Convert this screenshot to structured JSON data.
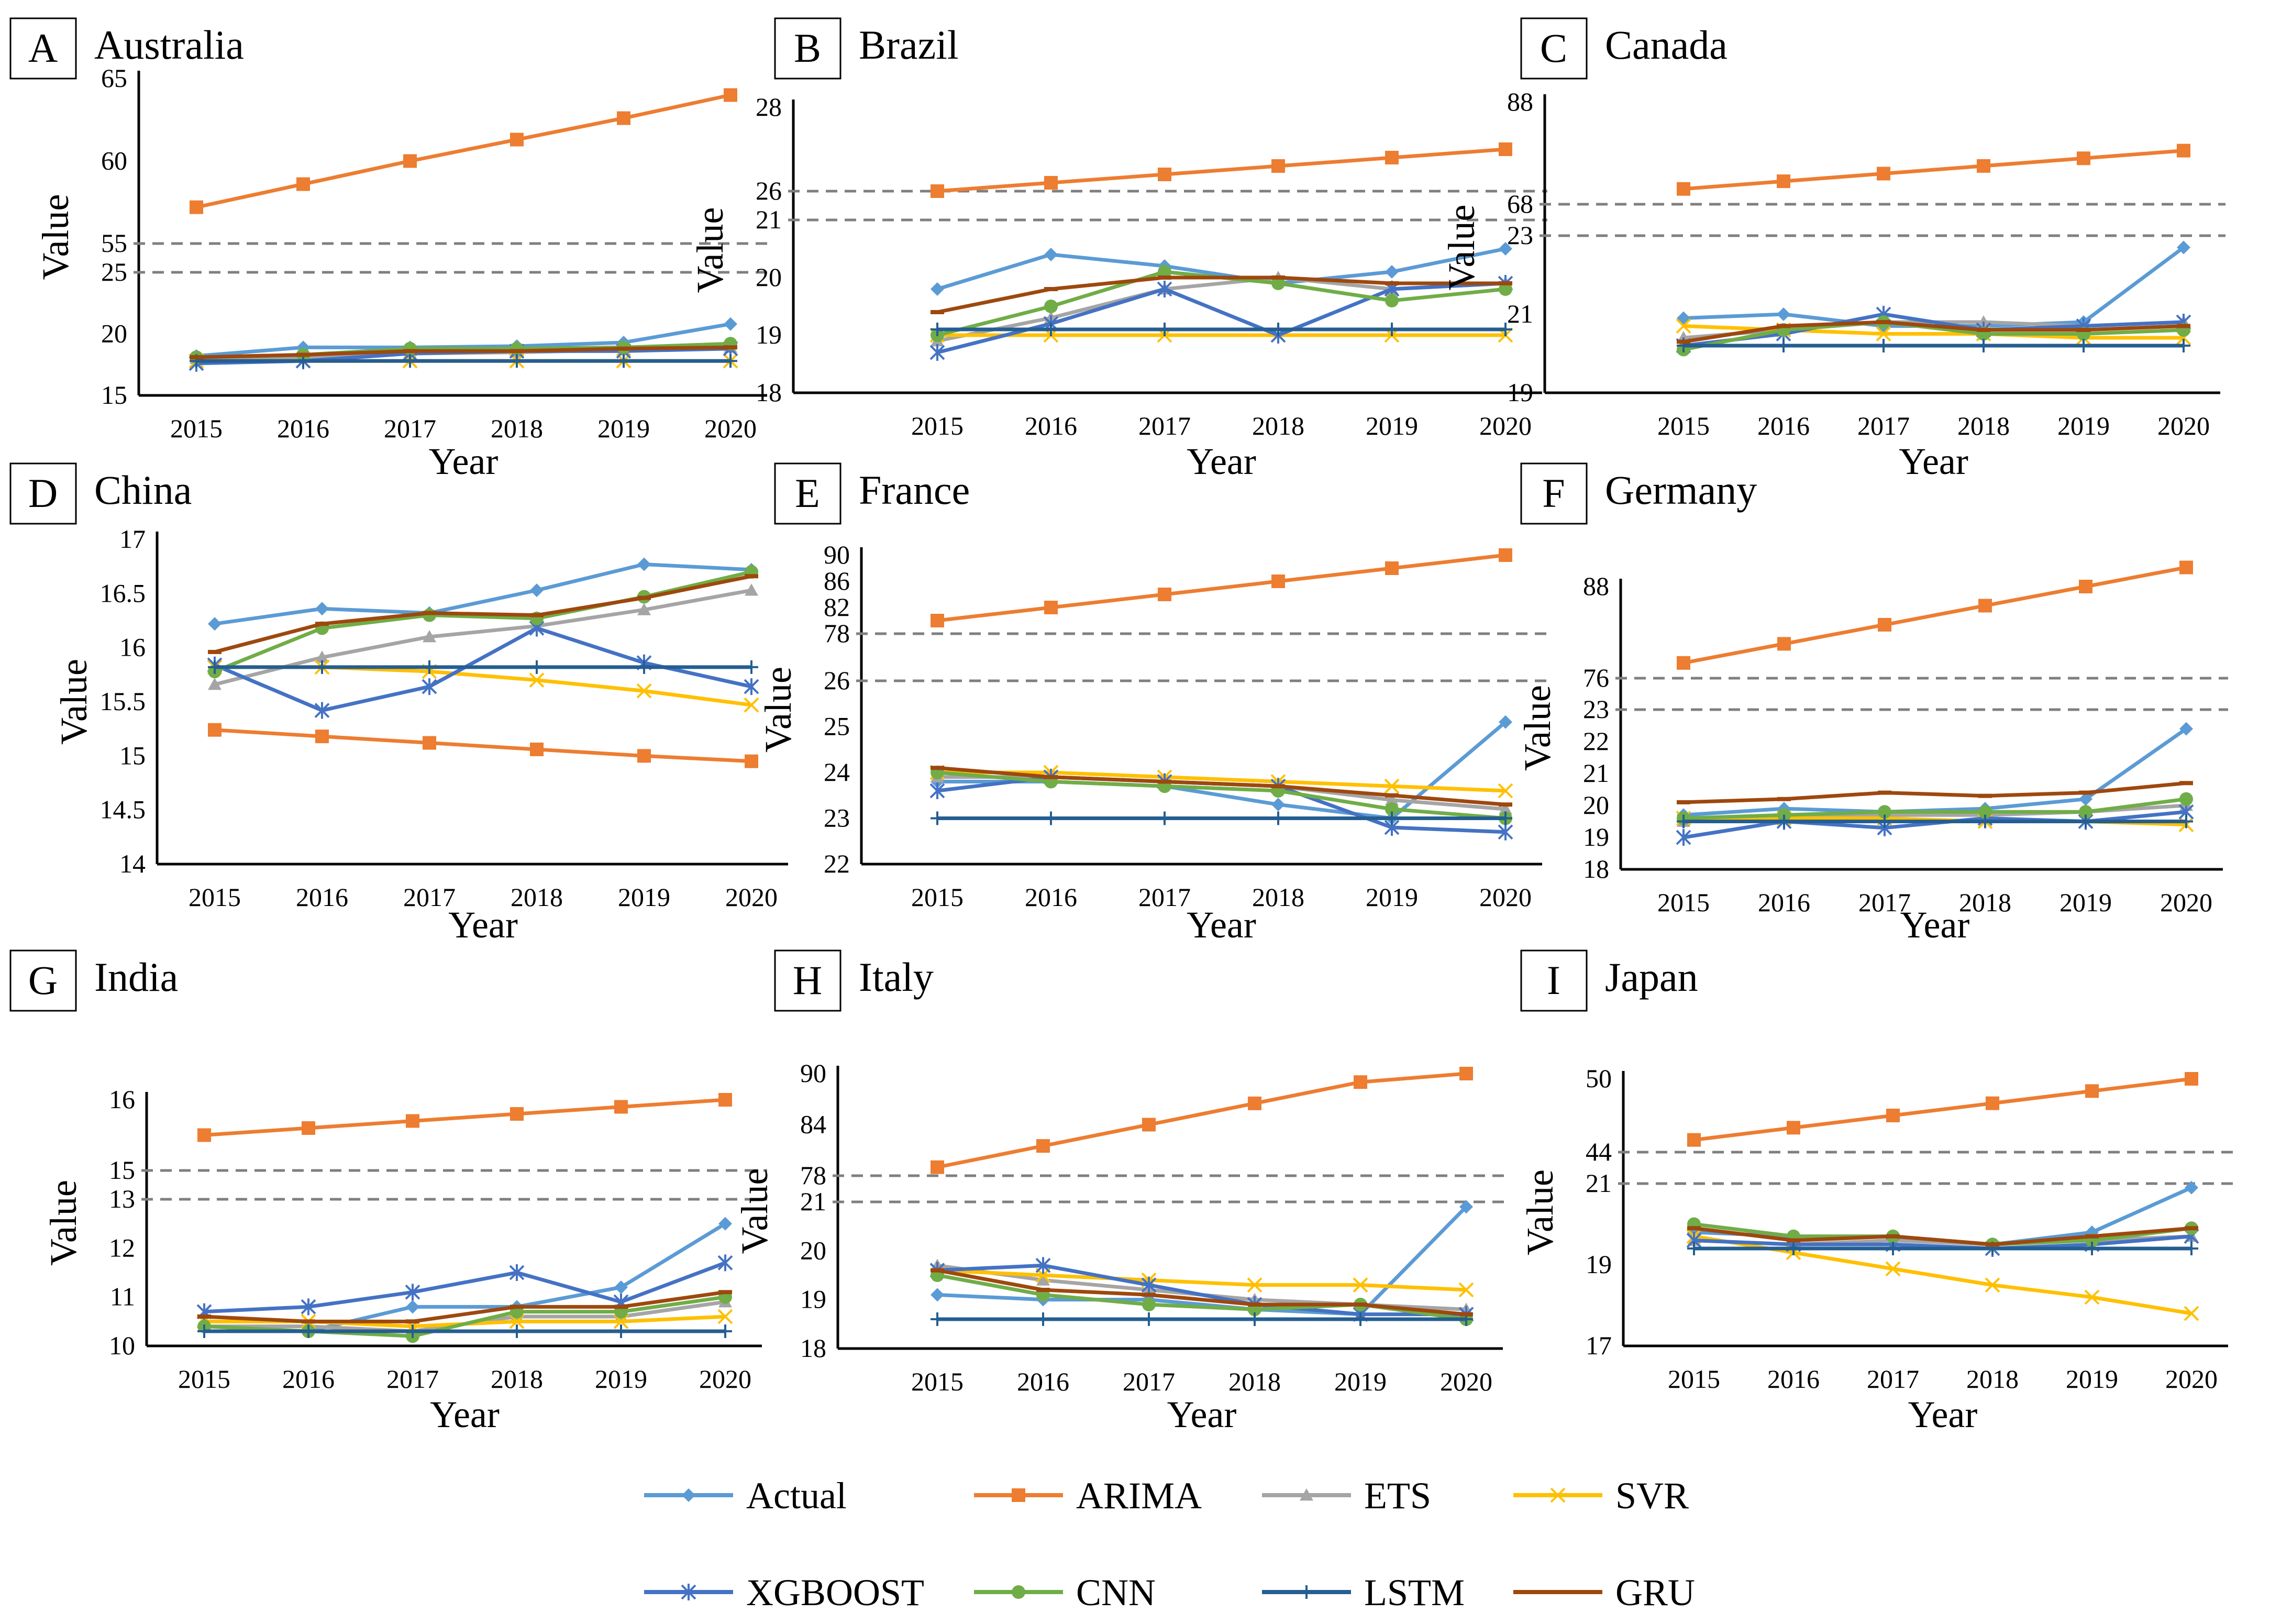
{
  "chart_data": [
    {
      "type": "line",
      "panel": "A",
      "title": "Australia",
      "xlabel": "Year",
      "ylabel": "Value",
      "categories": [
        "2015",
        "2016",
        "2017",
        "2018",
        "2019",
        "2020"
      ],
      "axis_break": true,
      "upper": {
        "ticks": [
          55,
          60,
          65
        ],
        "range": [
          55,
          65
        ]
      },
      "lower": {
        "ticks": [
          15,
          20,
          25
        ],
        "range": [
          15,
          25
        ]
      },
      "series": [
        {
          "name": "Actual",
          "values": [
            18.2,
            18.9,
            18.9,
            19.0,
            19.3,
            20.8
          ]
        },
        {
          "name": "ARIMA",
          "values": [
            57.2,
            58.6,
            60.0,
            61.3,
            62.6,
            64.0
          ]
        },
        {
          "name": "ETS",
          "values": [
            18.0,
            18.1,
            18.4,
            18.5,
            18.7,
            18.9
          ]
        },
        {
          "name": "SVR",
          "values": [
            17.8,
            17.8,
            17.8,
            17.8,
            17.8,
            17.8
          ]
        },
        {
          "name": "XGBOOST",
          "values": [
            17.6,
            17.8,
            18.4,
            18.6,
            18.6,
            18.8
          ]
        },
        {
          "name": "CNN",
          "values": [
            18.1,
            18.3,
            18.8,
            18.8,
            18.9,
            19.2
          ]
        },
        {
          "name": "LSTM",
          "values": [
            17.8,
            17.8,
            17.8,
            17.8,
            17.8,
            17.8
          ]
        },
        {
          "name": "GRU",
          "values": [
            18.1,
            18.3,
            18.6,
            18.6,
            18.8,
            18.9
          ]
        }
      ]
    },
    {
      "type": "line",
      "panel": "B",
      "title": "Brazil",
      "xlabel": "Year",
      "ylabel": "Value",
      "categories": [
        "2015",
        "2016",
        "2017",
        "2018",
        "2019",
        "2020"
      ],
      "axis_break": true,
      "upper": {
        "ticks": [
          26,
          28
        ],
        "range": [
          26,
          28
        ]
      },
      "lower": {
        "ticks": [
          18,
          19,
          20,
          21
        ],
        "range": [
          18,
          21
        ]
      },
      "series": [
        {
          "name": "Actual",
          "values": [
            19.8,
            20.4,
            20.2,
            19.9,
            20.1,
            20.5
          ]
        },
        {
          "name": "ARIMA",
          "values": [
            26.0,
            26.2,
            26.4,
            26.6,
            26.8,
            27.0
          ]
        },
        {
          "name": "ETS",
          "values": [
            18.9,
            19.3,
            19.8,
            20.0,
            19.8,
            19.9
          ]
        },
        {
          "name": "SVR",
          "values": [
            19.0,
            19.0,
            19.0,
            19.0,
            19.0,
            19.0
          ]
        },
        {
          "name": "XGBOOST",
          "values": [
            18.7,
            19.2,
            19.8,
            19.0,
            19.8,
            19.9
          ]
        },
        {
          "name": "CNN",
          "values": [
            19.0,
            19.5,
            20.1,
            19.9,
            19.6,
            19.8
          ]
        },
        {
          "name": "LSTM",
          "values": [
            19.1,
            19.1,
            19.1,
            19.1,
            19.1,
            19.1
          ]
        },
        {
          "name": "GRU",
          "values": [
            19.4,
            19.8,
            20.0,
            20.0,
            19.9,
            19.9
          ]
        }
      ]
    },
    {
      "type": "line",
      "panel": "C",
      "title": "Canada",
      "xlabel": "Year",
      "ylabel": "Value",
      "categories": [
        "2015",
        "2016",
        "2017",
        "2018",
        "2019",
        "2020"
      ],
      "axis_break": true,
      "upper": {
        "ticks": [
          68,
          88
        ],
        "range": [
          68,
          88
        ]
      },
      "lower": {
        "ticks": [
          19,
          21,
          23
        ],
        "range": [
          19,
          23
        ]
      },
      "series": [
        {
          "name": "Actual",
          "values": [
            20.9,
            21.0,
            20.7,
            20.7,
            20.8,
            22.7
          ]
        },
        {
          "name": "ARIMA",
          "values": [
            71.0,
            72.5,
            74.0,
            75.5,
            77.0,
            78.5
          ]
        },
        {
          "name": "ETS",
          "values": [
            20.4,
            20.6,
            20.8,
            20.8,
            20.7,
            20.8
          ]
        },
        {
          "name": "SVR",
          "values": [
            20.7,
            20.6,
            20.5,
            20.5,
            20.4,
            20.4
          ]
        },
        {
          "name": "XGBOOST",
          "values": [
            20.2,
            20.5,
            21.0,
            20.6,
            20.7,
            20.8
          ]
        },
        {
          "name": "CNN",
          "values": [
            20.1,
            20.6,
            20.8,
            20.5,
            20.5,
            20.6
          ]
        },
        {
          "name": "LSTM",
          "values": [
            20.2,
            20.2,
            20.2,
            20.2,
            20.2,
            20.2
          ]
        },
        {
          "name": "GRU",
          "values": [
            20.3,
            20.7,
            20.8,
            20.6,
            20.6,
            20.7
          ]
        }
      ]
    },
    {
      "type": "line",
      "panel": "D",
      "title": "China",
      "xlabel": "Year",
      "ylabel": "Value",
      "categories": [
        "2015",
        "2016",
        "2017",
        "2018",
        "2019",
        "2020"
      ],
      "axis_break": false,
      "lower": {
        "ticks": [
          14,
          14.5,
          15,
          15.5,
          16,
          16.5,
          17
        ],
        "range": [
          14,
          17
        ]
      },
      "series": [
        {
          "name": "Actual",
          "values": [
            16.22,
            16.36,
            16.32,
            16.53,
            16.77,
            16.72
          ]
        },
        {
          "name": "ARIMA",
          "values": [
            15.24,
            15.18,
            15.12,
            15.06,
            15.0,
            14.95
          ]
        },
        {
          "name": "ETS",
          "values": [
            15.66,
            15.91,
            16.1,
            16.2,
            16.35,
            16.53
          ]
        },
        {
          "name": "SVR",
          "values": [
            15.82,
            15.82,
            15.78,
            15.7,
            15.6,
            15.47
          ]
        },
        {
          "name": "XGBOOST",
          "values": [
            15.84,
            15.42,
            15.64,
            16.18,
            15.86,
            15.64
          ]
        },
        {
          "name": "CNN",
          "values": [
            15.78,
            16.18,
            16.3,
            16.27,
            16.47,
            16.7
          ]
        },
        {
          "name": "LSTM",
          "values": [
            15.82,
            15.82,
            15.82,
            15.82,
            15.82,
            15.82
          ]
        },
        {
          "name": "GRU",
          "values": [
            15.96,
            16.22,
            16.32,
            16.3,
            16.46,
            16.66
          ]
        }
      ]
    },
    {
      "type": "line",
      "panel": "E",
      "title": "France",
      "xlabel": "Year",
      "ylabel": "Value",
      "categories": [
        "2015",
        "2016",
        "2017",
        "2018",
        "2019",
        "2020"
      ],
      "axis_break": true,
      "upper": {
        "ticks": [
          78,
          82,
          86,
          90
        ],
        "range": [
          78,
          90
        ]
      },
      "lower": {
        "ticks": [
          22,
          23,
          24,
          25,
          26
        ],
        "range": [
          22,
          26
        ]
      },
      "series": [
        {
          "name": "Actual",
          "values": [
            23.8,
            23.8,
            23.7,
            23.3,
            23.0,
            25.1
          ]
        },
        {
          "name": "ARIMA",
          "values": [
            80.0,
            82.0,
            84.0,
            86.0,
            88.0,
            90.0
          ]
        },
        {
          "name": "ETS",
          "values": [
            23.9,
            23.9,
            23.8,
            23.7,
            23.4,
            23.2
          ]
        },
        {
          "name": "SVR",
          "values": [
            24.0,
            24.0,
            23.9,
            23.8,
            23.7,
            23.6
          ]
        },
        {
          "name": "XGBOOST",
          "values": [
            23.6,
            23.9,
            23.8,
            23.7,
            22.8,
            22.7
          ]
        },
        {
          "name": "CNN",
          "values": [
            24.0,
            23.8,
            23.7,
            23.6,
            23.2,
            23.0
          ]
        },
        {
          "name": "LSTM",
          "values": [
            23.0,
            23.0,
            23.0,
            23.0,
            23.0,
            23.0
          ]
        },
        {
          "name": "GRU",
          "values": [
            24.1,
            23.9,
            23.8,
            23.7,
            23.5,
            23.3
          ]
        }
      ]
    },
    {
      "type": "line",
      "panel": "F",
      "title": "Germany",
      "xlabel": "Year",
      "ylabel": "Value",
      "categories": [
        "2015",
        "2016",
        "2017",
        "2018",
        "2019",
        "2020"
      ],
      "axis_break": true,
      "upper": {
        "ticks": [
          76,
          88
        ],
        "range": [
          76,
          88
        ]
      },
      "lower": {
        "ticks": [
          18,
          19,
          20,
          21,
          22,
          23
        ],
        "range": [
          18,
          23
        ]
      },
      "series": [
        {
          "name": "Actual",
          "values": [
            19.7,
            19.9,
            19.8,
            19.9,
            20.2,
            22.4
          ]
        },
        {
          "name": "ARIMA",
          "values": [
            78.0,
            80.5,
            83.0,
            85.5,
            88.0,
            90.5
          ]
        },
        {
          "name": "ETS",
          "values": [
            19.5,
            19.6,
            19.7,
            19.7,
            19.8,
            20.0
          ]
        },
        {
          "name": "SVR",
          "values": [
            19.6,
            19.6,
            19.6,
            19.5,
            19.5,
            19.4
          ]
        },
        {
          "name": "XGBOOST",
          "values": [
            19.0,
            19.5,
            19.3,
            19.6,
            19.5,
            19.8
          ]
        },
        {
          "name": "CNN",
          "values": [
            19.6,
            19.7,
            19.8,
            19.8,
            19.8,
            20.2
          ]
        },
        {
          "name": "LSTM",
          "values": [
            19.5,
            19.5,
            19.5,
            19.5,
            19.5,
            19.5
          ]
        },
        {
          "name": "GRU",
          "values": [
            20.1,
            20.2,
            20.4,
            20.3,
            20.4,
            20.7
          ]
        }
      ]
    },
    {
      "type": "line",
      "panel": "G",
      "title": "India",
      "xlabel": "Year",
      "ylabel": "Value",
      "categories": [
        "2015",
        "2016",
        "2017",
        "2018",
        "2019",
        "2020"
      ],
      "axis_break": true,
      "upper": {
        "ticks": [
          15,
          16
        ],
        "range": [
          15,
          16
        ]
      },
      "lower": {
        "ticks": [
          10,
          11,
          12,
          13
        ],
        "range": [
          10,
          13
        ]
      },
      "series": [
        {
          "name": "Actual",
          "values": [
            10.4,
            10.3,
            10.8,
            10.8,
            11.2,
            12.5
          ]
        },
        {
          "name": "ARIMA",
          "values": [
            15.5,
            15.6,
            15.7,
            15.8,
            15.9,
            16.0
          ]
        },
        {
          "name": "ETS",
          "values": [
            10.4,
            10.4,
            10.3,
            10.6,
            10.6,
            10.9
          ]
        },
        {
          "name": "SVR",
          "values": [
            10.5,
            10.5,
            10.4,
            10.5,
            10.5,
            10.6
          ]
        },
        {
          "name": "XGBOOST",
          "values": [
            10.7,
            10.8,
            11.1,
            11.5,
            10.9,
            11.7
          ]
        },
        {
          "name": "CNN",
          "values": [
            10.4,
            10.3,
            10.2,
            10.7,
            10.7,
            11.0
          ]
        },
        {
          "name": "LSTM",
          "values": [
            10.3,
            10.3,
            10.3,
            10.3,
            10.3,
            10.3
          ]
        },
        {
          "name": "GRU",
          "values": [
            10.6,
            10.5,
            10.5,
            10.8,
            10.8,
            11.1
          ]
        }
      ]
    },
    {
      "type": "line",
      "panel": "H",
      "title": "Italy",
      "xlabel": "Year",
      "ylabel": "Value",
      "categories": [
        "2015",
        "2016",
        "2017",
        "2018",
        "2019",
        "2020"
      ],
      "axis_break": true,
      "upper": {
        "ticks": [
          78,
          84,
          90
        ],
        "range": [
          78,
          90
        ]
      },
      "lower": {
        "ticks": [
          18,
          19,
          20,
          21
        ],
        "range": [
          18,
          21
        ]
      },
      "series": [
        {
          "name": "Actual",
          "values": [
            19.1,
            19.0,
            19.0,
            18.8,
            18.7,
            20.9
          ]
        },
        {
          "name": "ARIMA",
          "values": [
            79.0,
            81.5,
            84.0,
            86.5,
            89.0,
            90.0
          ]
        },
        {
          "name": "ETS",
          "values": [
            19.7,
            19.4,
            19.2,
            19.0,
            18.9,
            18.8
          ]
        },
        {
          "name": "SVR",
          "values": [
            19.6,
            19.5,
            19.4,
            19.3,
            19.3,
            19.2
          ]
        },
        {
          "name": "XGBOOST",
          "values": [
            19.6,
            19.7,
            19.3,
            18.9,
            18.7,
            18.7
          ]
        },
        {
          "name": "CNN",
          "values": [
            19.5,
            19.1,
            18.9,
            18.8,
            18.9,
            18.6
          ]
        },
        {
          "name": "LSTM",
          "values": [
            18.6,
            18.6,
            18.6,
            18.6,
            18.6,
            18.6
          ]
        },
        {
          "name": "GRU",
          "values": [
            19.6,
            19.2,
            19.1,
            18.9,
            18.9,
            18.7
          ]
        }
      ]
    },
    {
      "type": "line",
      "panel": "I",
      "title": "Japan",
      "xlabel": "Year",
      "ylabel": "Value",
      "categories": [
        "2015",
        "2016",
        "2017",
        "2018",
        "2019",
        "2020"
      ],
      "axis_break": true,
      "upper": {
        "ticks": [
          44,
          50
        ],
        "range": [
          44,
          50
        ]
      },
      "lower": {
        "ticks": [
          17,
          19,
          21
        ],
        "range": [
          17,
          21
        ]
      },
      "series": [
        {
          "name": "Actual",
          "values": [
            19.8,
            19.7,
            19.7,
            19.5,
            19.8,
            20.9
          ]
        },
        {
          "name": "ARIMA",
          "values": [
            45.0,
            46.0,
            47.0,
            48.0,
            49.0,
            50.0
          ]
        },
        {
          "name": "ETS",
          "values": [
            19.6,
            19.5,
            19.6,
            19.5,
            19.6,
            19.7
          ]
        },
        {
          "name": "SVR",
          "values": [
            19.7,
            19.3,
            18.9,
            18.5,
            18.2,
            17.8
          ]
        },
        {
          "name": "XGBOOST",
          "values": [
            19.6,
            19.5,
            19.5,
            19.4,
            19.5,
            19.7
          ]
        },
        {
          "name": "CNN",
          "values": [
            20.0,
            19.7,
            19.7,
            19.5,
            19.6,
            19.9
          ]
        },
        {
          "name": "LSTM",
          "values": [
            19.4,
            19.4,
            19.4,
            19.4,
            19.4,
            19.4
          ]
        },
        {
          "name": "GRU",
          "values": [
            19.9,
            19.6,
            19.7,
            19.5,
            19.7,
            19.9
          ]
        }
      ]
    }
  ],
  "legend": [
    {
      "name": "Actual",
      "color": "#5B9BD5",
      "marker": "diamond"
    },
    {
      "name": "ARIMA",
      "color": "#ED7D31",
      "marker": "square"
    },
    {
      "name": "ETS",
      "color": "#A5A5A5",
      "marker": "triangle"
    },
    {
      "name": "SVR",
      "color": "#FFC000",
      "marker": "x"
    },
    {
      "name": "XGBOOST",
      "color": "#4472C4",
      "marker": "star"
    },
    {
      "name": "CNN",
      "color": "#70AD47",
      "marker": "circle"
    },
    {
      "name": "LSTM",
      "color": "#255E91",
      "marker": "plus"
    },
    {
      "name": "GRU",
      "color": "#9E480E",
      "marker": "dash"
    }
  ]
}
